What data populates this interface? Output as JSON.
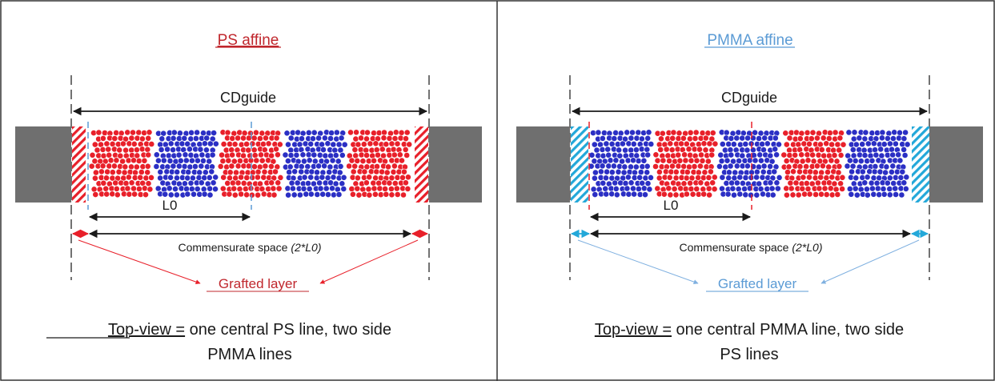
{
  "colors": {
    "ps_red": "#e8202a",
    "pmma_blue": "#2b2fc4",
    "title_red": "#c0272d",
    "title_blue": "#5b9bd5",
    "cyan": "#23a8d9",
    "gray_block": "#6f6f6f",
    "ink": "#1a1a1a"
  },
  "panels": [
    {
      "title": "PS affine",
      "cd_label": "CDguide",
      "l0_label": "L0",
      "commensurate_prefix": "Commensurate space ",
      "commensurate_formula": "(2*L0)",
      "grafted_label": "Grafted layer",
      "topview_underlined": "Top-view =",
      "topview_rest": " one central PS line, two side",
      "topview_line2": "PMMA lines",
      "blocks": [
        "PS",
        "PMMA",
        "PS",
        "PMMA",
        "PS"
      ]
    },
    {
      "title": "PMMA affine",
      "cd_label": "CDguide",
      "l0_label": "L0",
      "commensurate_prefix": "Commensurate space ",
      "commensurate_formula": "(2*L0)",
      "grafted_label": "Grafted layer",
      "topview_underlined": "Top-view =",
      "topview_rest": " one central PMMA line, two side",
      "topview_line2": "PS lines",
      "blocks": [
        "PMMA",
        "PS",
        "PMMA",
        "PS",
        "PMMA"
      ]
    }
  ]
}
